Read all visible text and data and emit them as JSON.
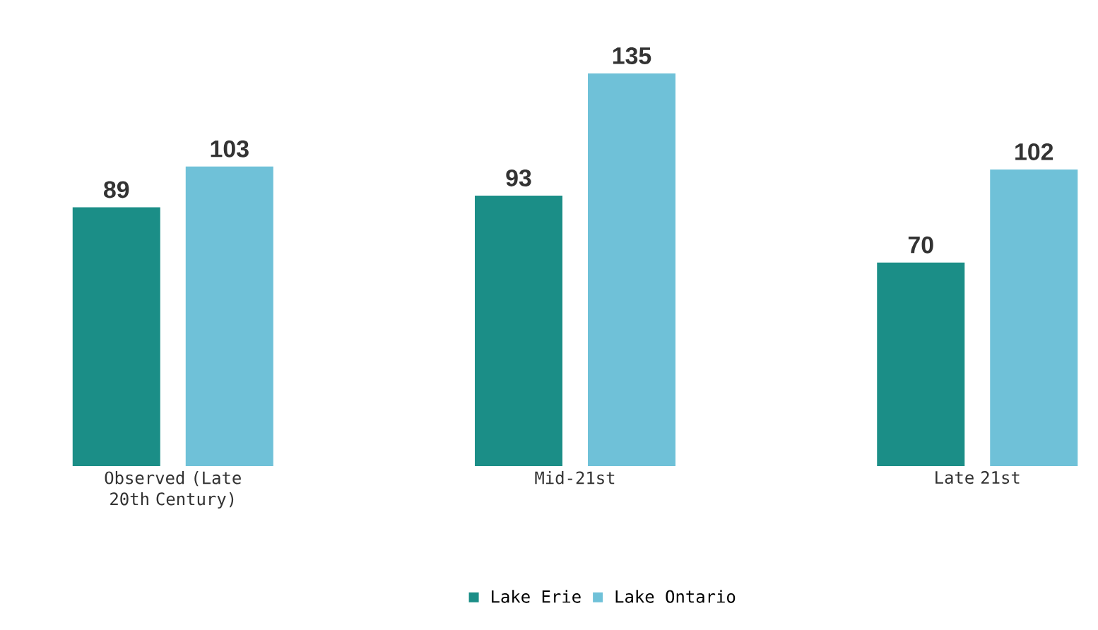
{
  "chart_data": {
    "type": "bar",
    "categories": [
      "Observed (Late 20th Century)",
      "Mid-21st",
      "Late 21st"
    ],
    "series": [
      {
        "name": "Lake Erie",
        "color": "#1b8e87",
        "values": [
          89,
          93,
          70
        ]
      },
      {
        "name": "Lake Ontario",
        "color": "#6fc1d8",
        "values": [
          103,
          135,
          102
        ]
      }
    ],
    "data_labels": true,
    "legend": "bottom"
  }
}
